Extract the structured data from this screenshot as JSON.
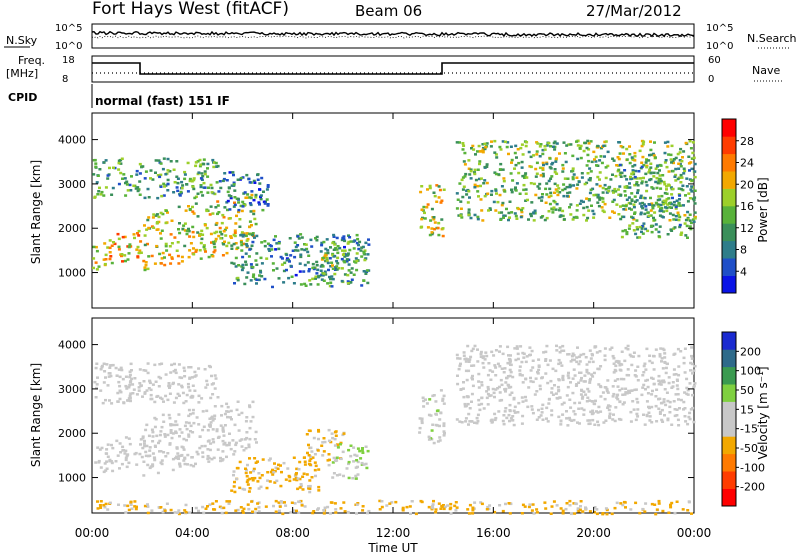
{
  "header": {
    "title": "Fort Hays West (fitACF)",
    "beam": "Beam 06",
    "date": "27/Mar/2012"
  },
  "params": {
    "nsky_label": "N.Sky",
    "nsearch_label": "N.Search",
    "freq_label": "Freq.",
    "freq_unit": "[MHz]",
    "nave_label": "Nave",
    "cpid_label": "CPID",
    "cpid_value": "normal (fast) 151 IF",
    "noise_ticks": [
      "10^5",
      "10^0"
    ],
    "freq_ticks": [
      "18",
      "8"
    ],
    "nave_ticks": [
      "60",
      "0"
    ]
  },
  "colors": {
    "power": [
      "#0a14e6",
      "#1f4fc8",
      "#2e7d8a",
      "#3a8f5a",
      "#58b23a",
      "#9ccf2a",
      "#f2a800",
      "#ff7a00",
      "#ff3c00",
      "#ff0000"
    ],
    "velocity": [
      "#ff0000",
      "#ff3c00",
      "#ff7a00",
      "#f2a800",
      "#c8c8c8",
      "#c8c8c8",
      "#7fd040",
      "#3a9a50",
      "#2e6a8a",
      "#1a2ad0"
    ]
  },
  "chart_data": [
    {
      "type": "heatmap",
      "name": "power",
      "ylabel": "Slant Range [km]",
      "yticks": [
        1000,
        2000,
        3000,
        4000
      ],
      "ylim": [
        200,
        4600
      ],
      "xlim": [
        0,
        24
      ],
      "colorbar": {
        "label": "Power [dB]",
        "ticks": [
          "28",
          "24",
          "20",
          "16",
          "12",
          "8",
          "4"
        ],
        "range": [
          0,
          32
        ]
      },
      "echo_regions": [
        {
          "x": [
            0.0,
            2.0
          ],
          "y": [
            1200,
            1900
          ],
          "value": 20
        },
        {
          "x": [
            2.0,
            6.5
          ],
          "y": [
            1300,
            2600
          ],
          "value": 18
        },
        {
          "x": [
            0.0,
            5.0
          ],
          "y": [
            2700,
            3600
          ],
          "value": 12
        },
        {
          "x": [
            5.0,
            7.0
          ],
          "y": [
            2400,
            3300
          ],
          "value": 8
        },
        {
          "x": [
            5.5,
            11.0
          ],
          "y": [
            700,
            1900
          ],
          "value": 10
        },
        {
          "x": [
            9.0,
            11.0
          ],
          "y": [
            1000,
            1700
          ],
          "value": 14
        },
        {
          "x": [
            13.0,
            14.0
          ],
          "y": [
            1800,
            3000
          ],
          "value": 18
        },
        {
          "x": [
            14.5,
            24.0
          ],
          "y": [
            2200,
            4000
          ],
          "value": 14
        },
        {
          "x": [
            21.0,
            24.0
          ],
          "y": [
            1800,
            3500
          ],
          "value": 12
        }
      ]
    },
    {
      "type": "heatmap",
      "name": "velocity",
      "ylabel": "Slant Range [km]",
      "yticks": [
        1000,
        2000,
        3000,
        4000
      ],
      "ylim": [
        200,
        4600
      ],
      "xlim": [
        0,
        24
      ],
      "colorbar": {
        "label": "Velocity [m s⁻¹]",
        "ticks": [
          "200",
          "100",
          "50",
          "15",
          "-15",
          "-50",
          "-100",
          "-200"
        ],
        "range": [
          -250,
          250
        ]
      },
      "echo_regions": [
        {
          "x": [
            0.0,
            2.0
          ],
          "y": [
            1200,
            1900
          ],
          "value": -10
        },
        {
          "x": [
            2.0,
            6.5
          ],
          "y": [
            1300,
            2600
          ],
          "value": 0
        },
        {
          "x": [
            0.0,
            5.0
          ],
          "y": [
            2700,
            3600
          ],
          "value": 0
        },
        {
          "x": [
            5.5,
            9.0
          ],
          "y": [
            700,
            1500
          ],
          "value": -60
        },
        {
          "x": [
            8.5,
            10.0
          ],
          "y": [
            1300,
            2100
          ],
          "value": -60
        },
        {
          "x": [
            9.5,
            11.0
          ],
          "y": [
            1000,
            1800
          ],
          "value": 40
        },
        {
          "x": [
            13.0,
            14.0
          ],
          "y": [
            1800,
            3000
          ],
          "value": 30
        },
        {
          "x": [
            14.5,
            24.0
          ],
          "y": [
            2200,
            4000
          ],
          "value": 0
        },
        {
          "x": [
            0.0,
            24.0
          ],
          "y": [
            200,
            500
          ],
          "value": -60
        }
      ]
    }
  ],
  "xaxis": {
    "label": "Time UT",
    "ticks": [
      "00:00",
      "04:00",
      "08:00",
      "12:00",
      "16:00",
      "20:00",
      "00:00"
    ],
    "tick_hours": [
      0,
      4,
      8,
      12,
      16,
      20,
      24
    ]
  }
}
